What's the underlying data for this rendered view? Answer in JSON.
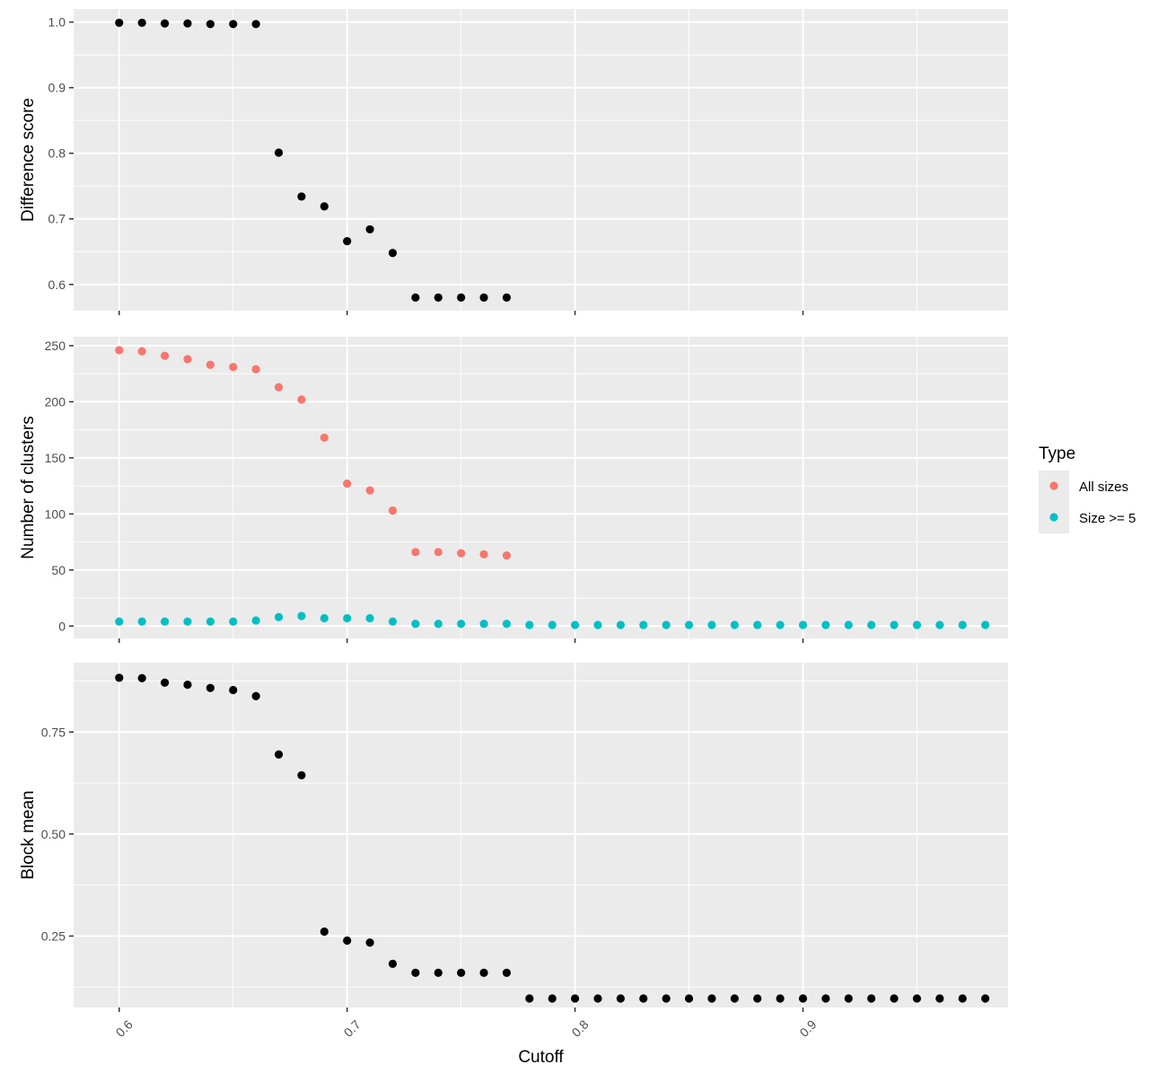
{
  "chart_data": {
    "type": "scatter",
    "xlabel": "Cutoff",
    "xlim": [
      0.58,
      0.99
    ],
    "x_ticks": [
      "0.6",
      "0.7",
      "0.8",
      "0.9"
    ],
    "x_tick_values": [
      0.6,
      0.7,
      0.8,
      0.9
    ],
    "grid": true,
    "legend": {
      "title": "Type",
      "placement": "right",
      "entries": [
        {
          "name": "All sizes",
          "color": "#F8766D"
        },
        {
          "name": "Size >= 5",
          "color": "#00BFC4"
        }
      ]
    },
    "panels": [
      {
        "ylabel": "Difference score",
        "ylim": [
          0.56,
          1.02
        ],
        "y_ticks": [
          "0.6",
          "0.7",
          "0.8",
          "0.9",
          "1.0"
        ],
        "y_tick_values": [
          0.6,
          0.7,
          0.8,
          0.9,
          1.0
        ],
        "series": [
          {
            "color": "#000000",
            "x": [
              0.6,
              0.61,
              0.62,
              0.63,
              0.64,
              0.65,
              0.66,
              0.67,
              0.68,
              0.69,
              0.7,
              0.71,
              0.72,
              0.73,
              0.74,
              0.75,
              0.76,
              0.77
            ],
            "y": [
              0.999,
              0.999,
              0.998,
              0.998,
              0.997,
              0.997,
              0.997,
              0.801,
              0.734,
              0.719,
              0.666,
              0.684,
              0.648,
              0.58,
              0.58,
              0.58,
              0.58,
              0.58
            ]
          }
        ]
      },
      {
        "ylabel": "Number of clusters",
        "ylim": [
          -11,
          258
        ],
        "y_ticks": [
          "0",
          "50",
          "100",
          "150",
          "200",
          "250"
        ],
        "y_tick_values": [
          0,
          50,
          100,
          150,
          200,
          250
        ],
        "series": [
          {
            "name": "All sizes",
            "color": "#F8766D",
            "x": [
              0.6,
              0.61,
              0.62,
              0.63,
              0.64,
              0.65,
              0.66,
              0.67,
              0.68,
              0.69,
              0.7,
              0.71,
              0.72,
              0.73,
              0.74,
              0.75,
              0.76,
              0.77
            ],
            "y": [
              246,
              245,
              241,
              238,
              233,
              231,
              229,
              213,
              202,
              168,
              127,
              121,
              103,
              66,
              66,
              65,
              64,
              63
            ]
          },
          {
            "name": "Size >= 5",
            "color": "#00BFC4",
            "x": [
              0.6,
              0.61,
              0.62,
              0.63,
              0.64,
              0.65,
              0.66,
              0.67,
              0.68,
              0.69,
              0.7,
              0.71,
              0.72,
              0.73,
              0.74,
              0.75,
              0.76,
              0.77,
              0.78,
              0.79,
              0.8,
              0.81,
              0.82,
              0.83,
              0.84,
              0.85,
              0.86,
              0.87,
              0.88,
              0.89,
              0.9,
              0.91,
              0.92,
              0.93,
              0.94,
              0.95,
              0.96,
              0.97,
              0.98
            ],
            "y": [
              4,
              4,
              4,
              4,
              4,
              4,
              5,
              8,
              9,
              7,
              7,
              7,
              4,
              2,
              2,
              2,
              2,
              2,
              1,
              1,
              1,
              1,
              1,
              1,
              1,
              1,
              1,
              1,
              1,
              1,
              1,
              1,
              1,
              1,
              1,
              1,
              1,
              1,
              1
            ]
          }
        ]
      },
      {
        "ylabel": "Block mean",
        "ylim": [
          0.075,
          0.92
        ],
        "y_ticks": [
          "0.25",
          "0.50",
          "0.75"
        ],
        "y_tick_values": [
          0.25,
          0.5,
          0.75
        ],
        "series": [
          {
            "color": "#000000",
            "x": [
              0.6,
              0.61,
              0.62,
              0.63,
              0.64,
              0.65,
              0.66,
              0.67,
              0.68,
              0.69,
              0.7,
              0.71,
              0.72,
              0.73,
              0.74,
              0.75,
              0.76,
              0.77,
              0.78,
              0.79,
              0.8,
              0.81,
              0.82,
              0.83,
              0.84,
              0.85,
              0.86,
              0.87,
              0.88,
              0.89,
              0.9,
              0.91,
              0.92,
              0.93,
              0.94,
              0.95,
              0.96,
              0.97,
              0.98
            ],
            "y": [
              0.883,
              0.882,
              0.871,
              0.866,
              0.858,
              0.853,
              0.838,
              0.695,
              0.644,
              0.261,
              0.239,
              0.234,
              0.182,
              0.16,
              0.16,
              0.16,
              0.16,
              0.16,
              0.097,
              0.097,
              0.097,
              0.097,
              0.097,
              0.097,
              0.097,
              0.097,
              0.097,
              0.097,
              0.097,
              0.097,
              0.097,
              0.097,
              0.097,
              0.097,
              0.097,
              0.097,
              0.097,
              0.097,
              0.097
            ]
          }
        ]
      }
    ]
  }
}
